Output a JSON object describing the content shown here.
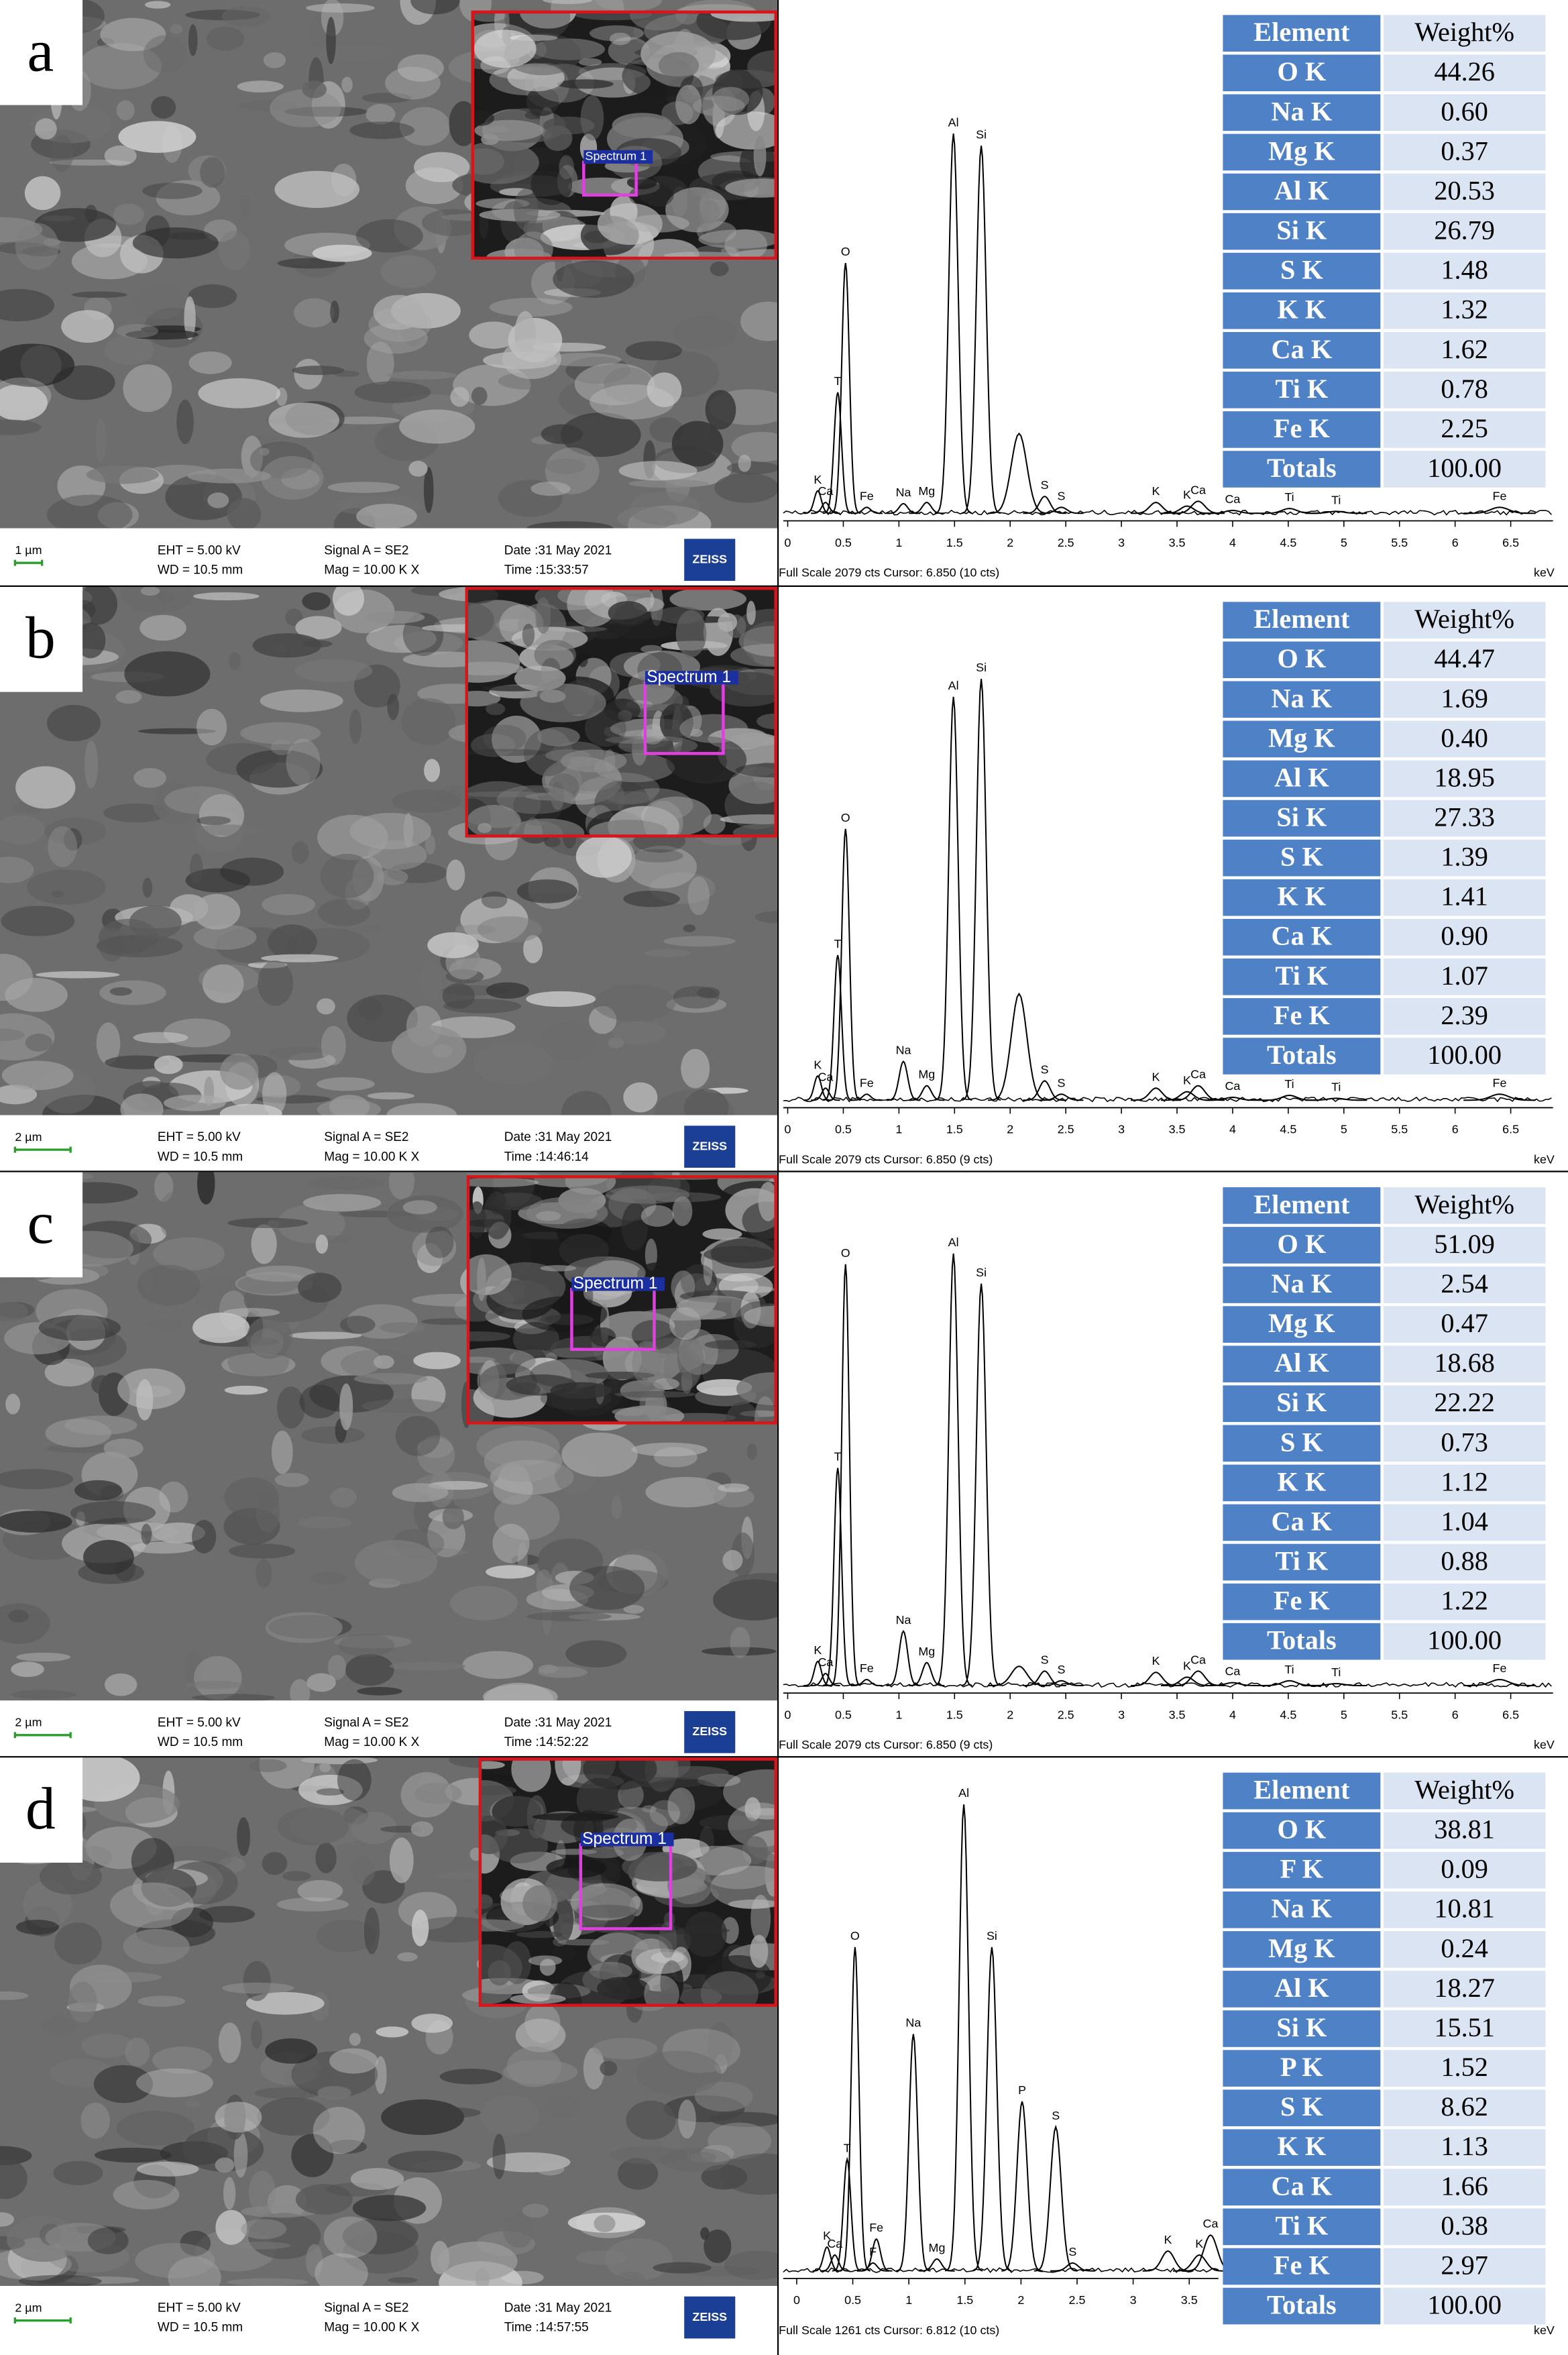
{
  "panels": [
    {
      "label": "a",
      "info": {
        "scale": "1 µm",
        "eht": "EHT = 5.00 kV",
        "wd": "WD = 10.5 mm",
        "signal": "Signal A = SE2",
        "mag": "Mag =  10.00 K X",
        "date": "Date :31 May 2021",
        "time": "Time :15:33:57",
        "brand": "ZEISS"
      },
      "inset_label": "Spectrum 1",
      "spectrum": {
        "xlim": [
          -0.04,
          6.88
        ],
        "ylim": [
          0,
          2079
        ],
        "xticks": [
          0,
          0.5,
          1,
          1.5,
          2,
          2.5,
          3,
          3.5,
          4,
          4.5,
          5,
          5.5,
          6,
          6.5
        ],
        "unit": "keV",
        "footer": "Full Scale 2079 cts Cursor: 6.850  (10 cts)",
        "peaks": [
          {
            "label": "K",
            "kev": 0.27,
            "cts": 93
          },
          {
            "label": "Ca",
            "kev": 0.34,
            "cts": 45
          },
          {
            "label": "T",
            "kev": 0.45,
            "cts": 500
          },
          {
            "label": "O",
            "kev": 0.52,
            "cts": 1035
          },
          {
            "label": "Fe",
            "kev": 0.71,
            "cts": 25
          },
          {
            "label": "Na",
            "kev": 1.04,
            "cts": 40
          },
          {
            "label": "Mg",
            "kev": 1.25,
            "cts": 45
          },
          {
            "label": "Al",
            "kev": 1.49,
            "cts": 1570
          },
          {
            "label": "Si",
            "kev": 1.74,
            "cts": 1520
          },
          {
            "label": null,
            "kev": 2.08,
            "cts": 330
          },
          {
            "label": "S",
            "kev": 2.31,
            "cts": 70
          },
          {
            "label": "S",
            "kev": 2.46,
            "cts": 25
          },
          {
            "label": "K",
            "kev": 3.31,
            "cts": 45
          },
          {
            "label": "K",
            "kev": 3.59,
            "cts": 30
          },
          {
            "label": "Ca",
            "kev": 3.69,
            "cts": 50
          },
          {
            "label": "Ca",
            "kev": 4.0,
            "cts": 12
          },
          {
            "label": "Ti",
            "kev": 4.51,
            "cts": 20
          },
          {
            "label": "Ti",
            "kev": 4.93,
            "cts": 8
          },
          {
            "label": "Fe",
            "kev": 6.4,
            "cts": 25
          }
        ]
      },
      "table": {
        "header": [
          "Element",
          "Weight%"
        ],
        "rows": [
          [
            "O K",
            "44.26"
          ],
          [
            "Na K",
            "0.60"
          ],
          [
            "Mg K",
            "0.37"
          ],
          [
            "Al K",
            "20.53"
          ],
          [
            "Si K",
            "26.79"
          ],
          [
            "S K",
            "1.48"
          ],
          [
            "K K",
            "1.32"
          ],
          [
            "Ca K",
            "1.62"
          ],
          [
            "Ti K",
            "0.78"
          ],
          [
            "Fe K",
            "2.25"
          ],
          [
            "Totals",
            "100.00"
          ]
        ]
      }
    },
    {
      "label": "b",
      "info": {
        "scale": "2 µm",
        "eht": "EHT = 5.00 kV",
        "wd": "WD = 10.5 mm",
        "signal": "Signal A = SE2",
        "mag": "Mag =  10.00 K X",
        "date": "Date :31 May 2021",
        "time": "Time :14:46:14",
        "brand": "ZEISS"
      },
      "inset_label": "Spectrum 1",
      "spectrum": {
        "xlim": [
          -0.04,
          6.88
        ],
        "ylim": [
          0,
          2079
        ],
        "xticks": [
          0,
          0.5,
          1,
          1.5,
          2,
          2.5,
          3,
          3.5,
          4,
          4.5,
          5,
          5.5,
          6,
          6.5
        ],
        "unit": "keV",
        "footer": "Full Scale 2079 cts Cursor: 6.850  (9 cts)",
        "peaks": [
          {
            "label": "K",
            "kev": 0.27,
            "cts": 100
          },
          {
            "label": "Ca",
            "kev": 0.34,
            "cts": 50
          },
          {
            "label": "T",
            "kev": 0.45,
            "cts": 600
          },
          {
            "label": "O",
            "kev": 0.52,
            "cts": 1122
          },
          {
            "label": "Fe",
            "kev": 0.71,
            "cts": 25
          },
          {
            "label": "Na",
            "kev": 1.04,
            "cts": 160
          },
          {
            "label": "Mg",
            "kev": 1.25,
            "cts": 60
          },
          {
            "label": "Al",
            "kev": 1.49,
            "cts": 1668
          },
          {
            "label": "Si",
            "kev": 1.74,
            "cts": 1742
          },
          {
            "label": null,
            "kev": 2.08,
            "cts": 440
          },
          {
            "label": "S",
            "kev": 2.31,
            "cts": 80
          },
          {
            "label": "S",
            "kev": 2.46,
            "cts": 25
          },
          {
            "label": "K",
            "kev": 3.31,
            "cts": 50
          },
          {
            "label": "K",
            "kev": 3.59,
            "cts": 35
          },
          {
            "label": "Ca",
            "kev": 3.69,
            "cts": 60
          },
          {
            "label": "Ca",
            "kev": 4.0,
            "cts": 12
          },
          {
            "label": "Ti",
            "kev": 4.51,
            "cts": 20
          },
          {
            "label": "Ti",
            "kev": 4.93,
            "cts": 8
          },
          {
            "label": "Fe",
            "kev": 6.4,
            "cts": 25
          }
        ]
      },
      "table": {
        "header": [
          "Element",
          "Weight%"
        ],
        "rows": [
          [
            "O K",
            "44.47"
          ],
          [
            "Na K",
            "1.69"
          ],
          [
            "Mg K",
            "0.40"
          ],
          [
            "Al K",
            "18.95"
          ],
          [
            "Si K",
            "27.33"
          ],
          [
            "S K",
            "1.39"
          ],
          [
            "K K",
            "1.41"
          ],
          [
            "Ca K",
            "0.90"
          ],
          [
            "Ti K",
            "1.07"
          ],
          [
            "Fe K",
            "2.39"
          ],
          [
            "Totals",
            "100.00"
          ]
        ]
      }
    },
    {
      "label": "c",
      "info": {
        "scale": "2 µm",
        "eht": "EHT = 5.00 kV",
        "wd": "WD = 10.5 mm",
        "signal": "Signal A = SE2",
        "mag": "Mag =  10.00 K X",
        "date": "Date :31 May 2021",
        "time": "Time :14:52:22",
        "brand": "ZEISS"
      },
      "inset_label": "Spectrum 1",
      "spectrum": {
        "xlim": [
          -0.04,
          6.88
        ],
        "ylim": [
          0,
          2079
        ],
        "xticks": [
          0,
          0.5,
          1,
          1.5,
          2,
          2.5,
          3,
          3.5,
          4,
          4.5,
          5,
          5.5,
          6,
          6.5
        ],
        "unit": "keV",
        "footer": "Full Scale 2079 cts Cursor: 6.850  (9 cts)",
        "peaks": [
          {
            "label": "K",
            "kev": 0.27,
            "cts": 100
          },
          {
            "label": "Ca",
            "kev": 0.34,
            "cts": 50
          },
          {
            "label": "T",
            "kev": 0.45,
            "cts": 900
          },
          {
            "label": "O",
            "kev": 0.52,
            "cts": 1742
          },
          {
            "label": "Fe",
            "kev": 0.71,
            "cts": 25
          },
          {
            "label": "Na",
            "kev": 1.04,
            "cts": 225
          },
          {
            "label": "Mg",
            "kev": 1.25,
            "cts": 95
          },
          {
            "label": "Al",
            "kev": 1.49,
            "cts": 1786
          },
          {
            "label": "Si",
            "kev": 1.74,
            "cts": 1662
          },
          {
            "label": null,
            "kev": 2.08,
            "cts": 80
          },
          {
            "label": "S",
            "kev": 2.31,
            "cts": 60
          },
          {
            "label": "S",
            "kev": 2.46,
            "cts": 20
          },
          {
            "label": "K",
            "kev": 3.31,
            "cts": 55
          },
          {
            "label": "K",
            "kev": 3.59,
            "cts": 35
          },
          {
            "label": "Ca",
            "kev": 3.69,
            "cts": 60
          },
          {
            "label": "Ca",
            "kev": 4.0,
            "cts": 12
          },
          {
            "label": "Ti",
            "kev": 4.51,
            "cts": 20
          },
          {
            "label": "Ti",
            "kev": 4.93,
            "cts": 8
          },
          {
            "label": "Fe",
            "kev": 6.4,
            "cts": 25
          }
        ]
      },
      "table": {
        "header": [
          "Element",
          "Weight%"
        ],
        "rows": [
          [
            "O K",
            "51.09"
          ],
          [
            "Na K",
            "2.54"
          ],
          [
            "Mg K",
            "0.47"
          ],
          [
            "Al K",
            "18.68"
          ],
          [
            "Si K",
            "22.22"
          ],
          [
            "S K",
            "0.73"
          ],
          [
            "K K",
            "1.12"
          ],
          [
            "Ca K",
            "1.04"
          ],
          [
            "Ti K",
            "0.88"
          ],
          [
            "Fe K",
            "1.22"
          ],
          [
            "Totals",
            "100.00"
          ]
        ]
      }
    },
    {
      "label": "d",
      "info": {
        "scale": "2 µm",
        "eht": "EHT = 5.00 kV",
        "wd": "WD = 10.5 mm",
        "signal": "Signal A = SE2",
        "mag": "Mag =  10.00 K X",
        "date": "Date :31 May 2021",
        "time": "Time :14:57:55",
        "brand": "ZEISS"
      },
      "inset_label": "Spectrum 1",
      "spectrum": {
        "xlim": [
          -0.12,
          3.76
        ],
        "ylim": [
          0,
          1261
        ],
        "xticks": [
          0,
          0.5,
          1,
          1.5,
          2,
          2.5,
          3,
          3.5
        ],
        "unit": "keV",
        "footer": "Full Scale 1261 cts Cursor: 6.812  (10 cts)",
        "peaks": [
          {
            "label": "K",
            "kev": 0.27,
            "cts": 60
          },
          {
            "label": "Ca",
            "kev": 0.34,
            "cts": 40
          },
          {
            "label": "T",
            "kev": 0.45,
            "cts": 280
          },
          {
            "label": "O",
            "kev": 0.52,
            "cts": 812
          },
          {
            "label": "F",
            "kev": 0.68,
            "cts": 20
          },
          {
            "label": "Fe",
            "kev": 0.71,
            "cts": 80
          },
          {
            "label": "Na",
            "kev": 1.04,
            "cts": 594
          },
          {
            "label": "Mg",
            "kev": 1.25,
            "cts": 30
          },
          {
            "label": "Al",
            "kev": 1.49,
            "cts": 1170
          },
          {
            "label": "Si",
            "kev": 1.74,
            "cts": 812
          },
          {
            "label": "P",
            "kev": 2.01,
            "cts": 425
          },
          {
            "label": "S",
            "kev": 2.31,
            "cts": 361
          },
          {
            "label": "S",
            "kev": 2.46,
            "cts": 20
          },
          {
            "label": "K",
            "kev": 3.31,
            "cts": 50
          },
          {
            "label": "K",
            "kev": 3.59,
            "cts": 40
          },
          {
            "label": "Ca",
            "kev": 3.69,
            "cts": 90
          }
        ]
      },
      "table": {
        "header": [
          "Element",
          "Weight%"
        ],
        "rows": [
          [
            "O K",
            "38.81"
          ],
          [
            "F K",
            "0.09"
          ],
          [
            "Na K",
            "10.81"
          ],
          [
            "Mg K",
            "0.24"
          ],
          [
            "Al K",
            "18.27"
          ],
          [
            "Si K",
            "15.51"
          ],
          [
            "P K",
            "1.52"
          ],
          [
            "S K",
            "8.62"
          ],
          [
            "K K",
            "1.13"
          ],
          [
            "Ca K",
            "1.66"
          ],
          [
            "Ti K",
            "0.38"
          ],
          [
            "Fe K",
            "2.97"
          ],
          [
            "Totals",
            "100.00"
          ]
        ]
      }
    }
  ]
}
